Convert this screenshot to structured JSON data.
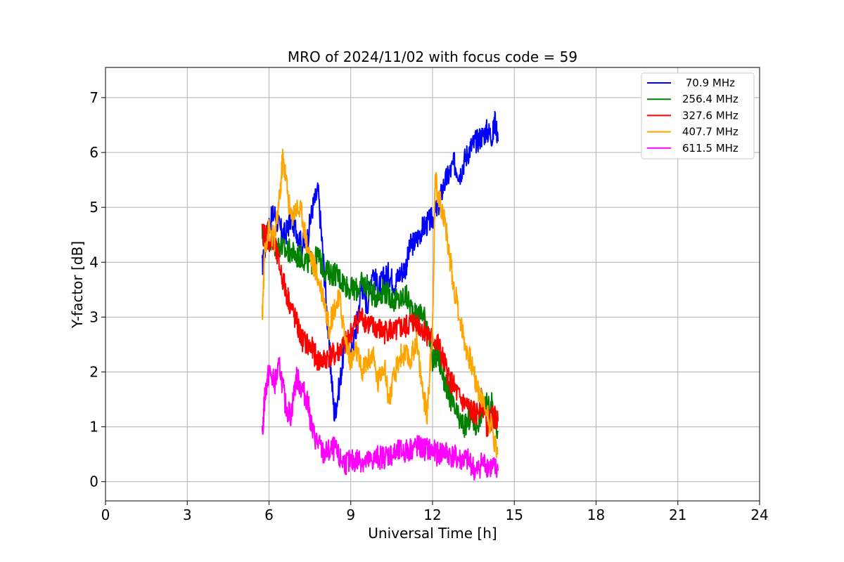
{
  "chart_data": {
    "type": "line",
    "title": "MRO of 2024/11/02 with focus code = 59",
    "xlabel": "Universal Time [h]",
    "ylabel": "Y-factor [dB]",
    "xlim": [
      0,
      24
    ],
    "ylim": [
      -0.35,
      7.55
    ],
    "xticks": [
      0,
      3,
      6,
      9,
      12,
      15,
      18,
      21,
      24
    ],
    "yticks": [
      0,
      1,
      2,
      3,
      4,
      5,
      6,
      7
    ],
    "grid": true,
    "legend_position": "top-right",
    "series": [
      {
        "name": " 70.9 MHz",
        "color": "#0000ff",
        "x": [
          5.75,
          5.9,
          6.0,
          6.2,
          6.4,
          6.6,
          6.8,
          7.0,
          7.2,
          7.4,
          7.6,
          7.8,
          8.0,
          8.2,
          8.4,
          8.6,
          8.8,
          9.0,
          9.2,
          9.4,
          9.6,
          9.8,
          10.0,
          10.2,
          10.4,
          10.6,
          10.8,
          11.0,
          11.2,
          11.4,
          11.6,
          11.8,
          12.0,
          12.2,
          12.4,
          12.6,
          12.8,
          13.0,
          13.2,
          13.4,
          13.6,
          13.8,
          14.0,
          14.2,
          14.3,
          14.4
        ],
        "y": [
          3.9,
          4.4,
          4.7,
          4.9,
          4.6,
          4.5,
          4.8,
          4.6,
          4.3,
          4.4,
          5.0,
          5.3,
          4.0,
          2.5,
          1.2,
          1.8,
          2.6,
          2.3,
          2.8,
          3.6,
          3.2,
          3.9,
          3.5,
          3.7,
          3.8,
          3.6,
          3.8,
          3.9,
          4.3,
          4.4,
          4.6,
          4.7,
          4.8,
          5.0,
          5.4,
          5.6,
          5.8,
          5.6,
          5.9,
          6.1,
          6.2,
          6.3,
          6.4,
          6.3,
          6.6,
          6.2
        ]
      },
      {
        "name": "256.4 MHz",
        "color": "#008000",
        "x": [
          5.75,
          5.9,
          6.0,
          6.2,
          6.4,
          6.6,
          6.8,
          7.0,
          7.2,
          7.4,
          7.6,
          7.8,
          8.0,
          8.2,
          8.4,
          8.6,
          8.8,
          9.0,
          9.2,
          9.4,
          9.6,
          9.8,
          10.0,
          10.2,
          10.4,
          10.6,
          10.8,
          11.0,
          11.2,
          11.4,
          11.6,
          11.8,
          12.0,
          12.2,
          12.4,
          12.6,
          12.8,
          13.0,
          13.2,
          13.4,
          13.6,
          13.8,
          14.0,
          14.2,
          14.4
        ],
        "y": [
          4.5,
          4.5,
          4.4,
          4.3,
          4.3,
          4.2,
          4.2,
          4.1,
          4.1,
          4.0,
          4.0,
          4.1,
          3.9,
          3.8,
          3.8,
          3.7,
          3.6,
          3.5,
          3.5,
          3.6,
          3.6,
          3.4,
          3.4,
          3.5,
          3.4,
          3.3,
          3.3,
          3.4,
          3.2,
          3.0,
          3.1,
          2.9,
          2.2,
          2.3,
          1.9,
          1.6,
          1.3,
          1.1,
          1.0,
          1.2,
          1.0,
          1.3,
          1.4,
          1.4,
          0.9
        ]
      },
      {
        "name": "327.6 MHz",
        "color": "#ff0000",
        "x": [
          5.75,
          5.9,
          6.0,
          6.2,
          6.4,
          6.6,
          6.8,
          7.0,
          7.2,
          7.4,
          7.6,
          7.8,
          8.0,
          8.2,
          8.4,
          8.6,
          8.8,
          9.0,
          9.2,
          9.4,
          9.6,
          9.8,
          10.0,
          10.2,
          10.4,
          10.6,
          10.8,
          11.0,
          11.2,
          11.4,
          11.6,
          11.8,
          12.0,
          12.2,
          12.4,
          12.6,
          12.8,
          13.0,
          13.2,
          13.4,
          13.6,
          13.8,
          14.0,
          14.2,
          14.4
        ],
        "y": [
          4.5,
          4.5,
          4.4,
          4.3,
          3.9,
          3.5,
          3.2,
          2.9,
          2.6,
          2.5,
          2.4,
          2.2,
          2.2,
          2.3,
          2.3,
          2.4,
          2.5,
          2.7,
          2.9,
          3.0,
          2.9,
          2.8,
          2.8,
          2.7,
          2.8,
          2.7,
          2.8,
          2.8,
          2.9,
          2.9,
          2.8,
          2.7,
          2.6,
          2.5,
          2.2,
          1.9,
          1.7,
          1.5,
          1.4,
          1.3,
          1.2,
          1.5,
          1.0,
          1.2,
          1.1
        ]
      },
      {
        "name": "407.7 MHz",
        "color": "#ffa500",
        "x": [
          5.75,
          5.85,
          6.0,
          6.2,
          6.4,
          6.5,
          6.6,
          6.8,
          7.0,
          7.2,
          7.4,
          7.6,
          7.8,
          8.0,
          8.2,
          8.4,
          8.6,
          8.8,
          9.0,
          9.2,
          9.4,
          9.6,
          9.8,
          10.0,
          10.2,
          10.4,
          10.6,
          10.8,
          11.0,
          11.2,
          11.4,
          11.6,
          11.8,
          12.0,
          12.1,
          12.2,
          12.4,
          12.6,
          12.8,
          13.0,
          13.2,
          13.4,
          13.6,
          13.8,
          14.0,
          14.2,
          14.4
        ],
        "y": [
          3.0,
          4.3,
          4.6,
          4.4,
          5.2,
          5.9,
          5.6,
          4.8,
          5.0,
          4.9,
          4.3,
          4.0,
          3.7,
          3.4,
          2.8,
          3.2,
          3.3,
          2.6,
          2.2,
          2.4,
          2.0,
          2.2,
          2.3,
          1.8,
          2.2,
          1.5,
          1.9,
          2.3,
          2.3,
          2.2,
          2.6,
          1.8,
          1.2,
          2.8,
          5.6,
          5.2,
          4.9,
          4.2,
          3.5,
          3.0,
          2.5,
          2.2,
          1.8,
          1.5,
          1.3,
          0.9,
          0.5
        ]
      },
      {
        "name": "611.5 MHz",
        "color": "#ff00ff",
        "x": [
          5.75,
          5.85,
          6.0,
          6.2,
          6.4,
          6.6,
          6.8,
          7.0,
          7.2,
          7.4,
          7.6,
          7.8,
          8.0,
          8.2,
          8.4,
          8.6,
          8.8,
          9.0,
          9.2,
          9.4,
          9.6,
          9.8,
          10.0,
          10.2,
          10.4,
          10.6,
          10.8,
          11.0,
          11.2,
          11.4,
          11.6,
          11.8,
          12.0,
          12.2,
          12.4,
          12.6,
          12.8,
          13.0,
          13.2,
          13.4,
          13.6,
          13.8,
          14.0,
          14.2,
          14.4
        ],
        "y": [
          0.8,
          1.6,
          2.0,
          1.8,
          2.1,
          1.4,
          1.2,
          1.9,
          1.7,
          1.5,
          0.9,
          0.7,
          0.5,
          0.55,
          0.6,
          0.4,
          0.35,
          0.35,
          0.4,
          0.4,
          0.35,
          0.4,
          0.45,
          0.45,
          0.5,
          0.5,
          0.55,
          0.55,
          0.6,
          0.65,
          0.6,
          0.6,
          0.55,
          0.5,
          0.55,
          0.5,
          0.45,
          0.4,
          0.4,
          0.35,
          0.15,
          0.35,
          0.3,
          0.25,
          0.2
        ]
      }
    ]
  }
}
